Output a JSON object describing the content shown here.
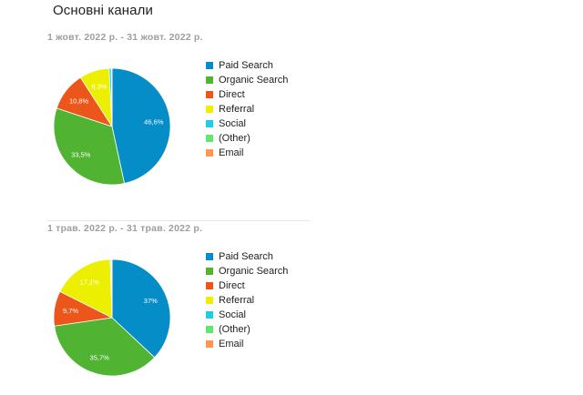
{
  "title": "Основні канали",
  "colors": {
    "Paid Search": "#058dc7",
    "Organic Search": "#50b432",
    "Direct": "#ed561b",
    "Referral": "#edef00",
    "Social": "#24cbe5",
    "(Other)": "#64e572",
    "Email": "#ff9655"
  },
  "chart_data": [
    {
      "type": "pie",
      "subtitle": "1 жовт. 2022 р. - 31 жовт. 2022 р.",
      "legend": [
        "Paid Search",
        "Organic Search",
        "Direct",
        "Referral",
        "Social",
        "(Other)",
        "Email"
      ],
      "slices": [
        {
          "label": "Paid Search",
          "value": 46.6,
          "display": "46,6%"
        },
        {
          "label": "Organic Search",
          "value": 33.5,
          "display": "33,5%"
        },
        {
          "label": "Direct",
          "value": 10.8,
          "display": "10,8%"
        },
        {
          "label": "Referral",
          "value": 8.3,
          "display": "8,3%"
        },
        {
          "label": "Social",
          "value": 0.6,
          "display": ""
        },
        {
          "label": "(Other)",
          "value": 0.1,
          "display": ""
        },
        {
          "label": "Email",
          "value": 0.1,
          "display": ""
        }
      ]
    },
    {
      "type": "pie",
      "subtitle": "1 трав. 2022 р. - 31 трав. 2022 р.",
      "legend": [
        "Paid Search",
        "Organic Search",
        "Direct",
        "Referral",
        "Social",
        "(Other)",
        "Email"
      ],
      "slices": [
        {
          "label": "Paid Search",
          "value": 37,
          "display": "37%"
        },
        {
          "label": "Organic Search",
          "value": 35.7,
          "display": "35,7%"
        },
        {
          "label": "Direct",
          "value": 9.7,
          "display": "9,7%"
        },
        {
          "label": "Referral",
          "value": 17.1,
          "display": "17,1%"
        },
        {
          "label": "Social",
          "value": 0.3,
          "display": ""
        },
        {
          "label": "(Other)",
          "value": 0.1,
          "display": ""
        },
        {
          "label": "Email",
          "value": 0.1,
          "display": ""
        }
      ]
    }
  ]
}
